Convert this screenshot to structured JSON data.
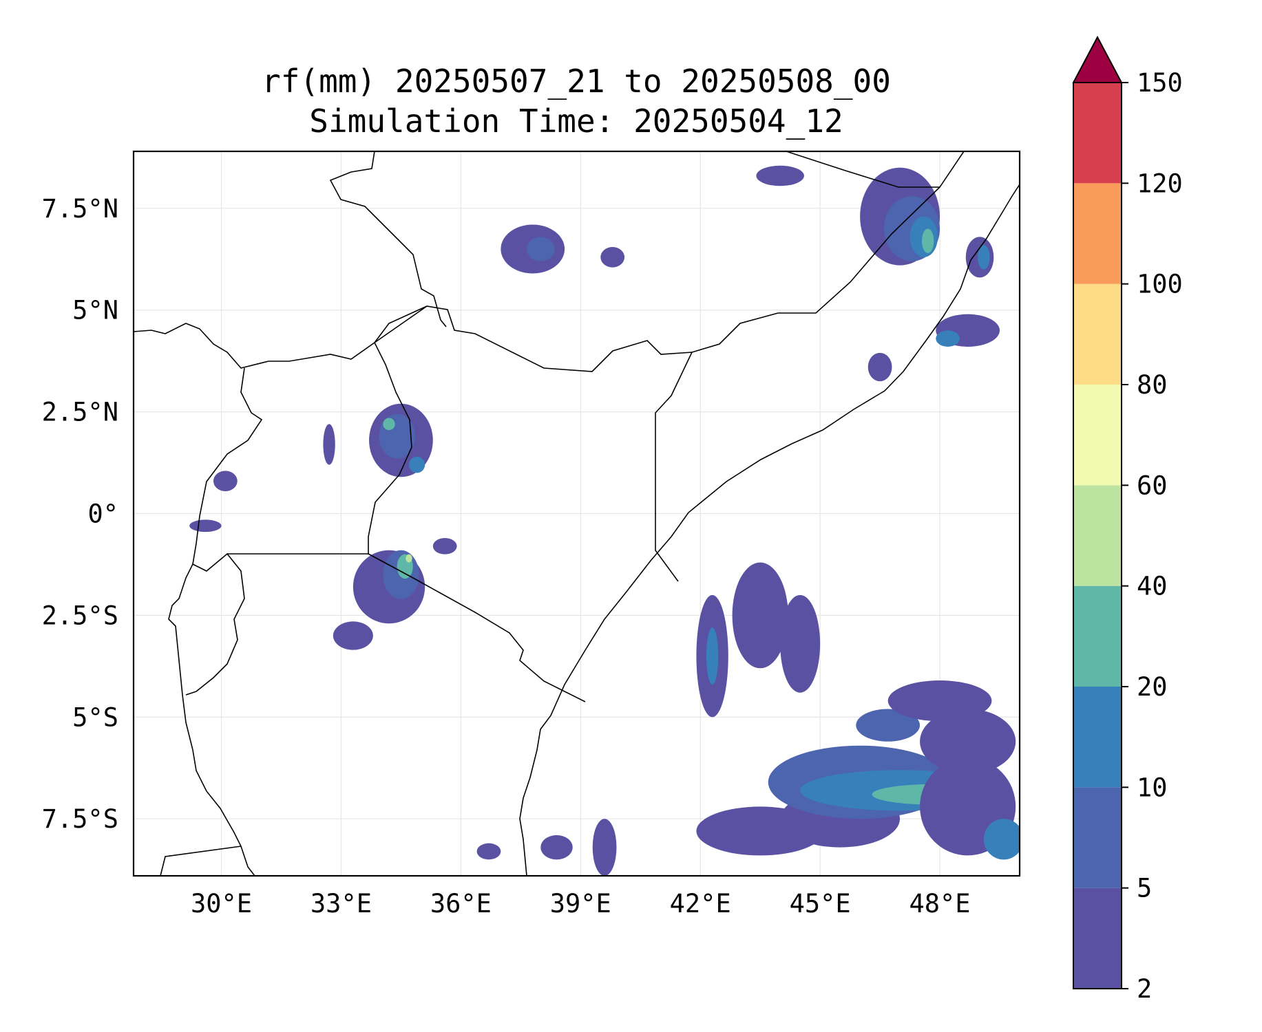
{
  "title": {
    "line1": "rf(mm) 20250507_21 to 20250508_00",
    "line2": "Simulation Time: 20250504_12"
  },
  "map": {
    "lon_range": [
      27.8,
      50.0
    ],
    "lat_range": [
      -8.9,
      8.9
    ],
    "lon_ticks": [
      {
        "value": 30,
        "label": "30°E"
      },
      {
        "value": 33,
        "label": "33°E"
      },
      {
        "value": 36,
        "label": "36°E"
      },
      {
        "value": 39,
        "label": "39°E"
      },
      {
        "value": 42,
        "label": "42°E"
      },
      {
        "value": 45,
        "label": "45°E"
      },
      {
        "value": 48,
        "label": "48°E"
      }
    ],
    "lat_ticks": [
      {
        "value": 7.5,
        "label": "7.5°N"
      },
      {
        "value": 5,
        "label": "5°N"
      },
      {
        "value": 2.5,
        "label": "2.5°N"
      },
      {
        "value": 0,
        "label": "0°"
      },
      {
        "value": -2.5,
        "label": "2.5°S"
      },
      {
        "value": -5,
        "label": "5°S"
      },
      {
        "value": -7.5,
        "label": "7.5°S"
      }
    ],
    "gridlines": true
  },
  "colorbar": {
    "levels": [
      2,
      5,
      10,
      20,
      40,
      60,
      80,
      100,
      120,
      150
    ],
    "labels": [
      "2",
      "5",
      "10",
      "20",
      "40",
      "60",
      "80",
      "100",
      "120",
      "150"
    ],
    "colors": [
      "#5b51a2",
      "#4c65ae",
      "#3880b9",
      "#5fb7a8",
      "#bce4a0",
      "#f2f9b0",
      "#fddb87",
      "#f89b5b",
      "#d6404e"
    ],
    "extend_color": "#9e0142",
    "extend": "max"
  },
  "rain_cells": [
    {
      "lon": 34.5,
      "lat": 1.8,
      "rx": 0.8,
      "ry": 0.9,
      "level": 0
    },
    {
      "lon": 34.4,
      "lat": 1.9,
      "rx": 0.45,
      "ry": 0.55,
      "level": 1
    },
    {
      "lon": 34.2,
      "lat": 2.2,
      "rx": 0.15,
      "ry": 0.15,
      "level": 3
    },
    {
      "lon": 34.9,
      "lat": 1.2,
      "rx": 0.2,
      "ry": 0.2,
      "level": 2
    },
    {
      "lon": 34.2,
      "lat": -1.8,
      "rx": 0.9,
      "ry": 0.9,
      "level": 0
    },
    {
      "lon": 34.5,
      "lat": -1.5,
      "rx": 0.45,
      "ry": 0.6,
      "level": 1
    },
    {
      "lon": 34.6,
      "lat": -1.3,
      "rx": 0.2,
      "ry": 0.3,
      "level": 3
    },
    {
      "lon": 34.7,
      "lat": -1.1,
      "rx": 0.08,
      "ry": 0.1,
      "level": 4
    },
    {
      "lon": 33.3,
      "lat": -3.0,
      "rx": 0.5,
      "ry": 0.35,
      "level": 0
    },
    {
      "lon": 37.8,
      "lat": 6.5,
      "rx": 0.8,
      "ry": 0.6,
      "level": 0
    },
    {
      "lon": 38.0,
      "lat": 6.5,
      "rx": 0.35,
      "ry": 0.3,
      "level": 1
    },
    {
      "lon": 39.8,
      "lat": 6.3,
      "rx": 0.3,
      "ry": 0.25,
      "level": 0
    },
    {
      "lon": 29.6,
      "lat": -0.3,
      "rx": 0.4,
      "ry": 0.15,
      "level": 0
    },
    {
      "lon": 30.1,
      "lat": 0.8,
      "rx": 0.3,
      "ry": 0.25,
      "level": 0
    },
    {
      "lon": 32.7,
      "lat": 1.7,
      "rx": 0.15,
      "ry": 0.5,
      "level": 0
    },
    {
      "lon": 35.6,
      "lat": -0.8,
      "rx": 0.3,
      "ry": 0.2,
      "level": 0
    },
    {
      "lon": 38.4,
      "lat": -8.2,
      "rx": 0.4,
      "ry": 0.3,
      "level": 0
    },
    {
      "lon": 36.7,
      "lat": -8.3,
      "rx": 0.3,
      "ry": 0.2,
      "level": 0
    },
    {
      "lon": 47.0,
      "lat": 7.3,
      "rx": 1.0,
      "ry": 1.2,
      "level": 0
    },
    {
      "lon": 47.3,
      "lat": 7.0,
      "rx": 0.7,
      "ry": 0.8,
      "level": 1
    },
    {
      "lon": 47.6,
      "lat": 6.8,
      "rx": 0.35,
      "ry": 0.5,
      "level": 2
    },
    {
      "lon": 47.7,
      "lat": 6.7,
      "rx": 0.15,
      "ry": 0.3,
      "level": 3
    },
    {
      "lon": 49.0,
      "lat": 6.3,
      "rx": 0.35,
      "ry": 0.5,
      "level": 0
    },
    {
      "lon": 49.1,
      "lat": 6.3,
      "rx": 0.15,
      "ry": 0.3,
      "level": 2
    },
    {
      "lon": 48.7,
      "lat": 4.5,
      "rx": 0.8,
      "ry": 0.4,
      "level": 0
    },
    {
      "lon": 48.2,
      "lat": 4.3,
      "rx": 0.3,
      "ry": 0.2,
      "level": 2
    },
    {
      "lon": 44.0,
      "lat": 8.3,
      "rx": 0.6,
      "ry": 0.25,
      "level": 0
    },
    {
      "lon": 46.5,
      "lat": 3.6,
      "rx": 0.3,
      "ry": 0.35,
      "level": 0
    },
    {
      "lon": 39.6,
      "lat": -8.2,
      "rx": 0.3,
      "ry": 0.7,
      "level": 0
    },
    {
      "lon": 42.3,
      "lat": -3.5,
      "rx": 0.4,
      "ry": 1.5,
      "level": 0
    },
    {
      "lon": 42.3,
      "lat": -3.5,
      "rx": 0.15,
      "ry": 0.7,
      "level": 2
    },
    {
      "lon": 43.5,
      "lat": -2.5,
      "rx": 0.7,
      "ry": 1.3,
      "level": 0
    },
    {
      "lon": 44.5,
      "lat": -3.2,
      "rx": 0.5,
      "ry": 1.2,
      "level": 0
    },
    {
      "lon": 43.5,
      "lat": -7.8,
      "rx": 1.6,
      "ry": 0.6,
      "level": 0
    },
    {
      "lon": 45.5,
      "lat": -7.5,
      "rx": 1.5,
      "ry": 0.7,
      "level": 0
    },
    {
      "lon": 46.0,
      "lat": -6.6,
      "rx": 2.3,
      "ry": 0.9,
      "level": 1
    },
    {
      "lon": 47.0,
      "lat": -6.8,
      "rx": 2.5,
      "ry": 0.5,
      "level": 2
    },
    {
      "lon": 47.8,
      "lat": -6.9,
      "rx": 1.5,
      "ry": 0.25,
      "level": 3
    },
    {
      "lon": 48.7,
      "lat": -7.2,
      "rx": 1.2,
      "ry": 1.2,
      "level": 0
    },
    {
      "lon": 48.7,
      "lat": -5.6,
      "rx": 1.2,
      "ry": 0.8,
      "level": 0
    },
    {
      "lon": 46.7,
      "lat": -5.2,
      "rx": 0.8,
      "ry": 0.4,
      "level": 1
    },
    {
      "lon": 48.0,
      "lat": -4.6,
      "rx": 1.3,
      "ry": 0.5,
      "level": 0
    },
    {
      "lon": 49.6,
      "lat": -8.0,
      "rx": 0.5,
      "ry": 0.5,
      "level": 2
    }
  ]
}
